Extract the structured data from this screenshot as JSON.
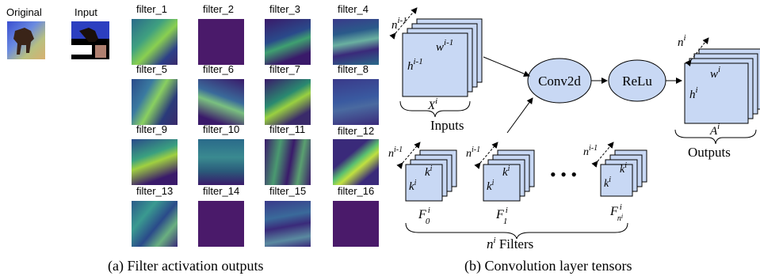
{
  "panel_a": {
    "original_label": "Original",
    "input_label": "Input",
    "filters": [
      {
        "label": "filter_1",
        "style": "active"
      },
      {
        "label": "filter_2",
        "style": "flat"
      },
      {
        "label": "filter_3",
        "style": "active"
      },
      {
        "label": "filter_4",
        "style": "active"
      },
      {
        "label": "filter_5",
        "style": "active"
      },
      {
        "label": "filter_6",
        "style": "active"
      },
      {
        "label": "filter_7",
        "style": "active"
      },
      {
        "label": "filter_8",
        "style": "active"
      },
      {
        "label": "filter_9",
        "style": "active"
      },
      {
        "label": "filter_10",
        "style": "active"
      },
      {
        "label": "filter_11",
        "style": "active"
      },
      {
        "label": "filter_12",
        "style": "active"
      },
      {
        "label": "filter_13",
        "style": "active"
      },
      {
        "label": "filter_14",
        "style": "flat"
      },
      {
        "label": "filter_15",
        "style": "active"
      },
      {
        "label": "filter_16",
        "style": "flat"
      }
    ],
    "caption": "(a) Filter activation outputs"
  },
  "panel_b": {
    "caption": "(b) Convolution layer tensors",
    "conv_label": "Conv2d",
    "relu_label": "ReLu",
    "inputs_label": "Inputs",
    "outputs_label": "Outputs",
    "filters_label": "n^i Filters",
    "dots": "• • •",
    "colors": {
      "box": "#c8d8f4",
      "stroke": "#000000",
      "ellipse": "#c8d8f4"
    }
  }
}
